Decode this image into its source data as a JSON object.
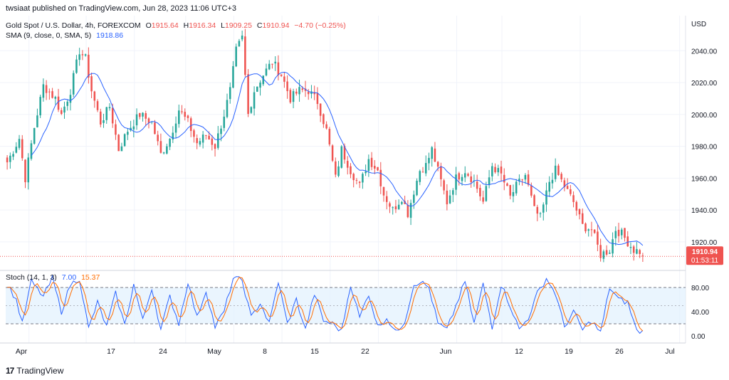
{
  "header": {
    "published": "twsiaat published on TradingView.com, Jun 28, 2023 11:06 UTC+3"
  },
  "legend": {
    "symbol": "Gold Spot / U.S. Dollar, 4h, FOREXCOM",
    "o_label": "O",
    "o_value": "1915.64",
    "h_label": "H",
    "h_value": "1916.34",
    "l_label": "L",
    "l_value": "1909.25",
    "c_label": "C",
    "c_value": "1910.94",
    "change": "−4.70 (−0.25%)",
    "sma_label": "SMA (9, close, 0, SMA, 5)",
    "sma_value": "1918.86"
  },
  "price_axis": {
    "currency": "USD",
    "ticks": [
      "2040.00",
      "2020.00",
      "2000.00",
      "1980.00",
      "1960.00",
      "1940.00",
      "1920.00"
    ],
    "tick_values": [
      2040,
      2020,
      2000,
      1980,
      1960,
      1940,
      1920
    ],
    "last_price": "1910.94",
    "countdown": "01:53:11"
  },
  "stoch": {
    "label": "Stoch (14, 1, 3)",
    "k_value": "7.00",
    "d_value": "15.37",
    "ticks": [
      "80.00",
      "40.00",
      "0.00"
    ],
    "tick_values": [
      80,
      40,
      0
    ],
    "band_upper": 80,
    "band_middle": 50,
    "band_lower": 20
  },
  "time_axis": {
    "labels": [
      "Apr",
      "17",
      "24",
      "May",
      "8",
      "15",
      "22",
      "Jun",
      "12",
      "19",
      "26",
      "Jul"
    ]
  },
  "footer": {
    "brand": "TradingView",
    "logo": "17"
  },
  "colors": {
    "up": "#26a69a",
    "down": "#ef5350",
    "sma": "#2962ff",
    "stoch_k": "#2962ff",
    "stoch_d": "#ff6d00",
    "band_fill": "#e3f2fd",
    "last_price_bg": "#ef5350"
  },
  "chart_data": {
    "type": "candlestick",
    "symbol": "XAUUSD",
    "timeframe": "4h",
    "ylim": [
      1903,
      2062
    ],
    "sma_period": 9,
    "close_path": [
      [
        0,
        1970
      ],
      [
        4,
        1985
      ],
      [
        6,
        1960
      ],
      [
        9,
        1992
      ],
      [
        12,
        2018
      ],
      [
        16,
        2010
      ],
      [
        18,
        2000
      ],
      [
        21,
        2015
      ],
      [
        24,
        2040
      ],
      [
        26,
        2035
      ],
      [
        28,
        2015
      ],
      [
        31,
        1995
      ],
      [
        34,
        2005
      ],
      [
        37,
        1978
      ],
      [
        40,
        1990
      ],
      [
        44,
        2000
      ],
      [
        48,
        1995
      ],
      [
        51,
        1975
      ],
      [
        54,
        1985
      ],
      [
        57,
        2003
      ],
      [
        60,
        1995
      ],
      [
        63,
        1982
      ],
      [
        66,
        1987
      ],
      [
        69,
        1980
      ],
      [
        72,
        2000
      ],
      [
        74,
        2015
      ],
      [
        76,
        2040
      ],
      [
        78,
        2048
      ],
      [
        80,
        2000
      ],
      [
        82,
        2015
      ],
      [
        85,
        2025
      ],
      [
        88,
        2033
      ],
      [
        91,
        2025
      ],
      [
        94,
        2010
      ],
      [
        97,
        2015
      ],
      [
        100,
        2015
      ],
      [
        103,
        2008
      ],
      [
        106,
        1990
      ],
      [
        109,
        1960
      ],
      [
        111,
        1978
      ],
      [
        114,
        1965
      ],
      [
        117,
        1955
      ],
      [
        120,
        1972
      ],
      [
        123,
        1965
      ],
      [
        125,
        1950
      ],
      [
        128,
        1940
      ],
      [
        131,
        1948
      ],
      [
        133,
        1938
      ],
      [
        135,
        1952
      ],
      [
        137,
        1965
      ],
      [
        139,
        1968
      ],
      [
        141,
        1978
      ],
      [
        144,
        1958
      ],
      [
        146,
        1945
      ],
      [
        149,
        1960
      ],
      [
        152,
        1965
      ],
      [
        155,
        1958
      ],
      [
        158,
        1945
      ],
      [
        161,
        1968
      ],
      [
        164,
        1962
      ],
      [
        167,
        1948
      ],
      [
        169,
        1955
      ],
      [
        172,
        1962
      ],
      [
        175,
        1940
      ],
      [
        177,
        1935
      ],
      [
        180,
        1958
      ],
      [
        182,
        1965
      ],
      [
        185,
        1955
      ],
      [
        188,
        1945
      ],
      [
        191,
        1930
      ],
      [
        194,
        1928
      ],
      [
        197,
        1912
      ],
      [
        200,
        1915
      ],
      [
        202,
        1928
      ],
      [
        204,
        1925
      ],
      [
        206,
        1920
      ],
      [
        208,
        1915
      ],
      [
        210,
        1914
      ],
      [
        211,
        1911
      ]
    ],
    "stoch_k_path": [
      [
        0,
        85
      ],
      [
        3,
        60
      ],
      [
        5,
        20
      ],
      [
        8,
        90
      ],
      [
        12,
        65
      ],
      [
        15,
        95
      ],
      [
        18,
        40
      ],
      [
        21,
        85
      ],
      [
        24,
        95
      ],
      [
        27,
        12
      ],
      [
        30,
        55
      ],
      [
        33,
        15
      ],
      [
        36,
        70
      ],
      [
        39,
        18
      ],
      [
        42,
        85
      ],
      [
        45,
        25
      ],
      [
        48,
        80
      ],
      [
        51,
        10
      ],
      [
        54,
        65
      ],
      [
        57,
        20
      ],
      [
        60,
        90
      ],
      [
        63,
        30
      ],
      [
        66,
        75
      ],
      [
        69,
        15
      ],
      [
        72,
        40
      ],
      [
        75,
        95
      ],
      [
        78,
        92
      ],
      [
        81,
        30
      ],
      [
        84,
        55
      ],
      [
        87,
        20
      ],
      [
        90,
        90
      ],
      [
        93,
        20
      ],
      [
        96,
        60
      ],
      [
        99,
        10
      ],
      [
        102,
        70
      ],
      [
        105,
        25
      ],
      [
        108,
        20
      ],
      [
        111,
        8
      ],
      [
        114,
        85
      ],
      [
        117,
        30
      ],
      [
        120,
        70
      ],
      [
        123,
        15
      ],
      [
        126,
        30
      ],
      [
        129,
        5
      ],
      [
        132,
        25
      ],
      [
        135,
        85
      ],
      [
        137,
        90
      ],
      [
        140,
        80
      ],
      [
        143,
        20
      ],
      [
        146,
        10
      ],
      [
        149,
        50
      ],
      [
        152,
        90
      ],
      [
        155,
        20
      ],
      [
        158,
        85
      ],
      [
        161,
        15
      ],
      [
        164,
        85
      ],
      [
        167,
        50
      ],
      [
        170,
        10
      ],
      [
        173,
        30
      ],
      [
        176,
        70
      ],
      [
        179,
        95
      ],
      [
        182,
        70
      ],
      [
        185,
        15
      ],
      [
        188,
        40
      ],
      [
        191,
        10
      ],
      [
        194,
        25
      ],
      [
        197,
        5
      ],
      [
        200,
        80
      ],
      [
        203,
        60
      ],
      [
        206,
        55
      ],
      [
        209,
        8
      ],
      [
        211,
        7
      ]
    ]
  }
}
